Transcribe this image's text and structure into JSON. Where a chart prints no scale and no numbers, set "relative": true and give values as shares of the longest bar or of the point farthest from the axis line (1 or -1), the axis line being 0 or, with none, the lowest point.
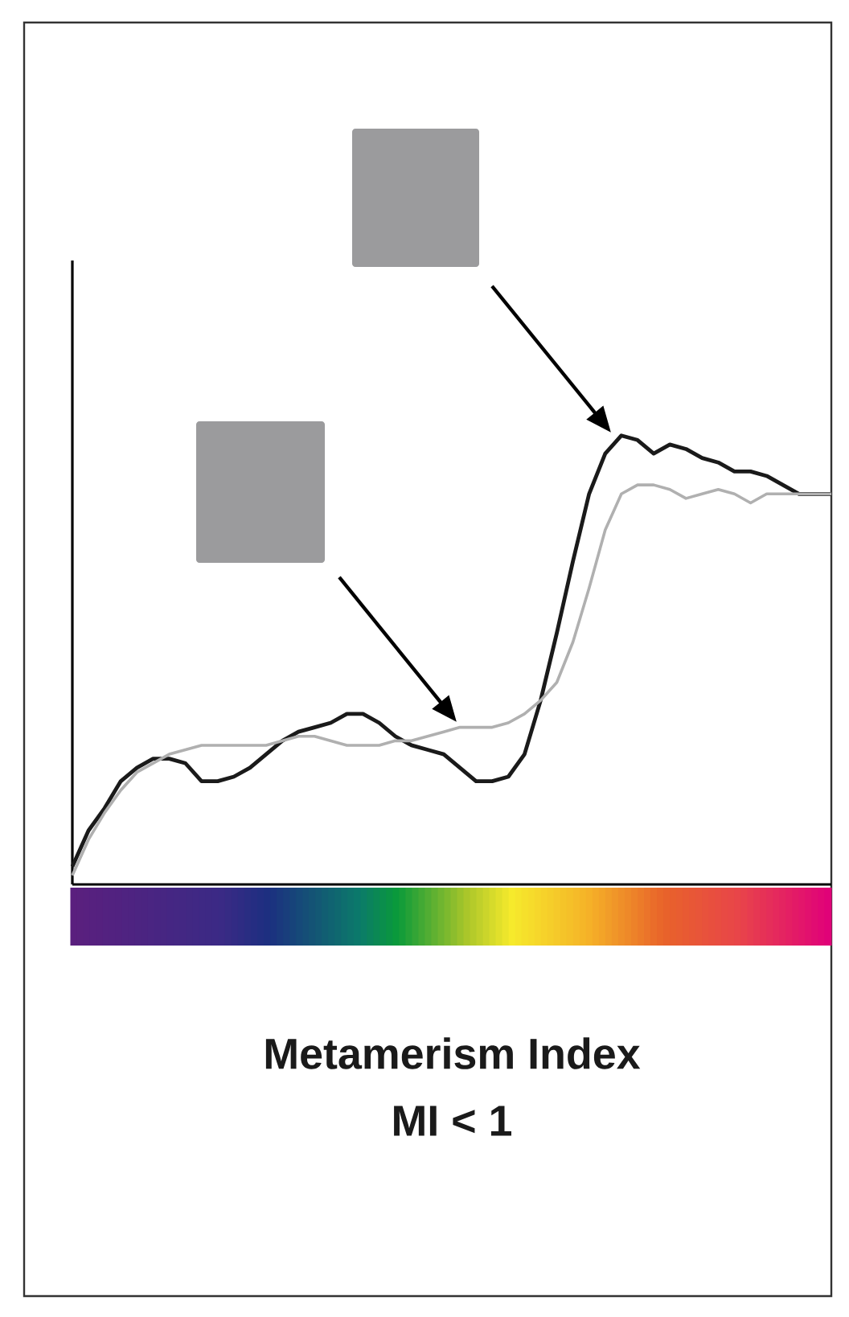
{
  "chart_data": {
    "type": "line",
    "title": "Metamerism Index",
    "subtitle": "MI < 1",
    "relative": true,
    "categories": [
      null,
      null,
      null,
      null,
      null,
      null,
      null,
      null,
      null,
      null,
      null,
      null,
      null,
      null,
      null,
      null,
      null,
      null,
      null,
      null,
      null,
      null,
      null,
      null,
      null,
      null,
      null,
      null,
      null,
      null,
      null,
      null,
      null,
      null,
      null,
      null,
      null,
      null,
      null,
      null,
      null,
      null,
      null,
      null,
      null,
      null,
      null,
      null
    ],
    "series": [
      {
        "color": "#1a1a1a",
        "values": [
          0.04,
          0.12,
          0.17,
          0.23,
          0.26,
          0.28,
          0.28,
          0.27,
          0.23,
          0.23,
          0.24,
          0.26,
          0.29,
          0.32,
          0.34,
          0.35,
          0.36,
          0.38,
          0.38,
          0.36,
          0.33,
          0.31,
          0.3,
          0.29,
          0.26,
          0.23,
          0.23,
          0.24,
          0.29,
          0.41,
          0.56,
          0.72,
          0.87,
          0.96,
          1,
          0.99,
          0.96,
          0.98,
          0.97,
          0.95,
          0.94,
          0.92,
          0.92,
          0.91,
          0.89,
          0.87,
          0.87,
          0.87
        ]
      },
      {
        "color": "#b0b0b0",
        "values": [
          0.02,
          0.1,
          0.16,
          0.21,
          0.25,
          0.27,
          0.29,
          0.3,
          0.31,
          0.31,
          0.31,
          0.31,
          0.31,
          0.32,
          0.33,
          0.33,
          0.32,
          0.31,
          0.31,
          0.31,
          0.32,
          0.32,
          0.33,
          0.34,
          0.35,
          0.35,
          0.35,
          0.36,
          0.38,
          0.41,
          0.45,
          0.54,
          0.66,
          0.79,
          0.87,
          0.89,
          0.89,
          0.88,
          0.86,
          0.87,
          0.88,
          0.87,
          0.85,
          0.87,
          0.87,
          0.87,
          0.87,
          0.87
        ]
      }
    ]
  }
}
